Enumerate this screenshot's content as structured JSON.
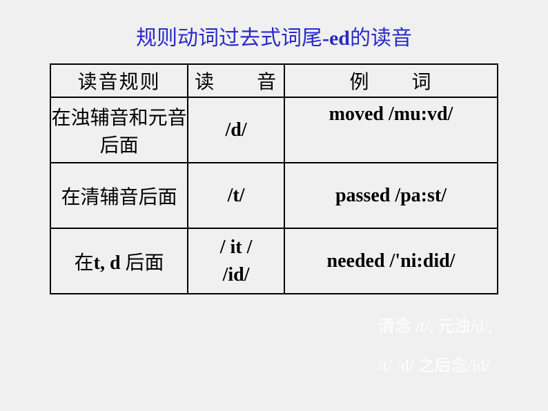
{
  "title": {
    "part1": "规则动词过去式词尾",
    "part2": "-ed",
    "part3": "的读音"
  },
  "headers": {
    "col1": "读音规则",
    "col2": "读　　音",
    "col3": "例　　词"
  },
  "rows": [
    {
      "rule": "在浊辅音和元音后面",
      "sound": "/d/",
      "example": "moved /mu:vd/"
    },
    {
      "rule": "在清辅音后面",
      "sound": "/t/",
      "example": "passed /pa:st/"
    },
    {
      "rule_cn": "在",
      "rule_en": "t, d ",
      "rule_cn2": "后面",
      "sound_line1": "/ it /",
      "sound_line2": "/id/",
      "example": "needed /'ni:did/"
    }
  ],
  "mnemonic": {
    "line1_cn1": "清念 ",
    "line1_en1": "/t/, ",
    "line1_cn2": "元浊",
    "line1_en2": "/d/;",
    "line2_en1": "/t/ /d/ ",
    "line2_cn1": "之后念",
    "line2_en2": "/id/"
  },
  "colors": {
    "title": "#2929cc",
    "text": "#000000",
    "background": "#f0f0f0",
    "border": "#000000",
    "mnemonic": "#ffffff"
  }
}
